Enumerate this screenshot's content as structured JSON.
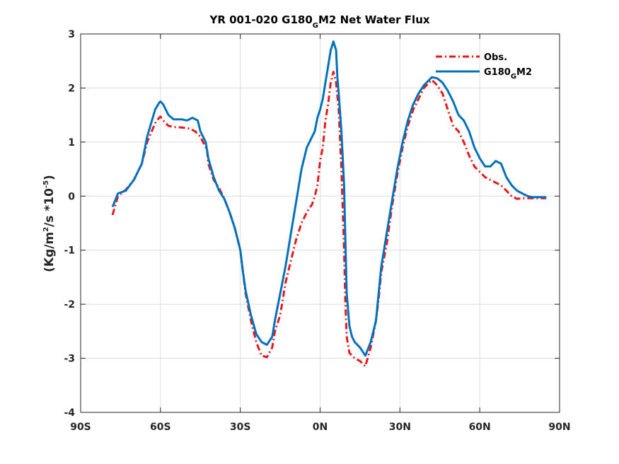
{
  "chart_data": {
    "type": "line",
    "title": {
      "main": "YR 001-020 G180",
      "sub": "G",
      "rest": "M2  Net Water Flux"
    },
    "ylabel": {
      "a": "(Kg/m",
      "sup1": "2",
      "b": "/s *10",
      "sup2": "-5",
      "c": ")"
    },
    "xlim": [
      -90,
      90
    ],
    "ylim": [
      -4,
      3
    ],
    "xticks": [
      -90,
      -60,
      -30,
      0,
      30,
      60,
      90
    ],
    "xtick_labels": [
      "90S",
      "60S",
      "30S",
      "0N",
      "30N",
      "60N",
      "90N"
    ],
    "yticks": [
      -4,
      -3,
      -2,
      -1,
      0,
      1,
      2,
      3
    ],
    "ytick_labels": [
      "-4",
      "-3",
      "-2",
      "-1",
      "0",
      "1",
      "2",
      "3"
    ],
    "grid": true,
    "legend_position": "top-right",
    "series": [
      {
        "name": "Obs.",
        "color": "#e41a1c",
        "style": "dash-dot",
        "x": [
          -78,
          -76,
          -73,
          -70,
          -67,
          -65,
          -62,
          -60.5,
          -60,
          -59,
          -57,
          -55,
          -52,
          -49,
          -47,
          -45,
          -44,
          -42.5,
          -42,
          -40,
          -38,
          -36,
          -34,
          -32,
          -30,
          -29,
          -28,
          -26,
          -24,
          -22,
          -20,
          -18,
          -17,
          -15,
          -13,
          -11,
          -9,
          -7,
          -5,
          -3,
          -2,
          -1,
          0,
          1,
          2,
          3,
          4,
          5,
          6,
          7,
          8,
          9,
          9.5,
          10,
          11,
          12,
          13,
          15,
          17,
          19,
          21,
          22,
          23,
          25,
          27,
          29,
          31,
          33,
          35,
          37,
          39,
          41,
          42,
          44,
          46,
          48,
          50,
          52,
          54,
          56,
          58,
          60,
          62,
          64,
          66,
          68,
          70,
          72,
          74,
          76,
          78,
          80,
          82,
          85
        ],
        "y": [
          -0.35,
          0.0,
          0.12,
          0.3,
          0.6,
          1.0,
          1.35,
          1.45,
          1.47,
          1.4,
          1.3,
          1.28,
          1.27,
          1.25,
          1.2,
          1.1,
          1.0,
          0.85,
          0.6,
          0.3,
          0.15,
          -0.05,
          -0.3,
          -0.6,
          -1.0,
          -1.4,
          -1.8,
          -2.3,
          -2.7,
          -2.95,
          -2.98,
          -2.8,
          -2.5,
          -2.2,
          -1.6,
          -1.2,
          -0.8,
          -0.5,
          -0.3,
          -0.15,
          0.0,
          0.2,
          0.65,
          0.9,
          1.4,
          1.7,
          2.1,
          2.3,
          2.1,
          1.6,
          0.5,
          -1.0,
          -2.0,
          -2.6,
          -2.9,
          -2.95,
          -3.0,
          -3.05,
          -3.15,
          -2.8,
          -2.3,
          -1.9,
          -1.4,
          -0.9,
          -0.2,
          0.4,
          0.9,
          1.3,
          1.6,
          1.8,
          2.0,
          2.1,
          2.15,
          2.05,
          1.9,
          1.6,
          1.3,
          1.2,
          1.0,
          0.75,
          0.55,
          0.45,
          0.35,
          0.3,
          0.25,
          0.2,
          0.1,
          0.0,
          -0.05,
          -0.04,
          -0.04,
          -0.04,
          -0.04,
          -0.04
        ]
      },
      {
        "name": "G180_GM2",
        "color": "#0072bd",
        "style": "solid",
        "x": [
          -78,
          -76,
          -73,
          -70,
          -67,
          -65,
          -62,
          -60.5,
          -60,
          -59,
          -57,
          -55,
          -52,
          -50,
          -48,
          -46,
          -45,
          -43,
          -42,
          -40,
          -38,
          -36,
          -34,
          -32,
          -30,
          -29,
          -28,
          -26,
          -24,
          -22,
          -20,
          -18,
          -17,
          -15,
          -13,
          -11,
          -9,
          -7,
          -5,
          -3,
          -2,
          -1,
          0,
          1,
          2,
          3,
          4,
          5,
          6,
          6.5,
          7,
          8,
          9,
          9.5,
          10,
          11,
          12,
          13,
          15,
          17,
          19,
          21,
          22,
          23,
          25,
          27,
          29,
          31,
          33,
          35,
          37,
          39,
          41,
          42,
          44,
          46,
          48,
          50,
          52,
          54,
          56,
          58,
          60,
          62,
          64,
          66,
          68,
          70,
          72,
          74,
          76,
          78,
          80,
          82,
          85
        ],
        "y": [
          -0.2,
          0.05,
          0.1,
          0.3,
          0.6,
          1.1,
          1.6,
          1.73,
          1.75,
          1.7,
          1.5,
          1.42,
          1.42,
          1.4,
          1.45,
          1.4,
          1.2,
          1.0,
          0.7,
          0.35,
          0.1,
          -0.05,
          -0.3,
          -0.6,
          -1.0,
          -1.4,
          -1.75,
          -2.2,
          -2.55,
          -2.7,
          -2.75,
          -2.6,
          -2.3,
          -1.8,
          -1.3,
          -0.7,
          -0.1,
          0.5,
          0.9,
          1.1,
          1.2,
          1.45,
          1.6,
          1.8,
          2.1,
          2.4,
          2.7,
          2.86,
          2.7,
          2.2,
          1.9,
          1.2,
          0.2,
          -0.8,
          -1.8,
          -2.4,
          -2.6,
          -2.7,
          -2.8,
          -2.95,
          -2.7,
          -2.3,
          -1.8,
          -1.3,
          -0.7,
          -0.1,
          0.5,
          1.0,
          1.4,
          1.7,
          1.9,
          2.05,
          2.15,
          2.2,
          2.18,
          2.1,
          1.95,
          1.75,
          1.5,
          1.4,
          1.2,
          0.9,
          0.7,
          0.55,
          0.55,
          0.65,
          0.6,
          0.35,
          0.2,
          0.1,
          0.05,
          0.0,
          -0.02,
          -0.02,
          -0.02
        ]
      }
    ],
    "legend": {
      "obs": "Obs.",
      "model_main": "G180",
      "model_sub": "G",
      "model_rest": "M2"
    }
  }
}
